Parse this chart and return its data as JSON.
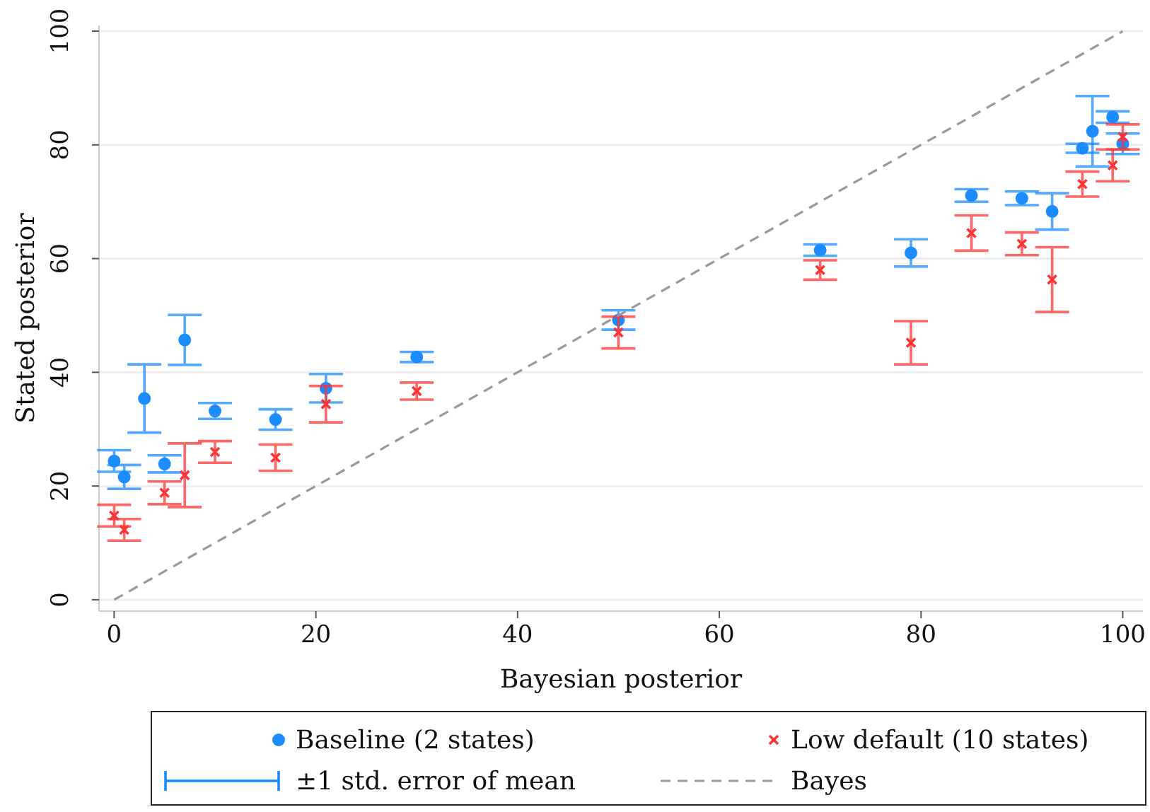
{
  "chart_data": {
    "type": "scatter",
    "xlabel": "Bayesian posterior",
    "ylabel": "Stated posterior",
    "xlim": [
      -1.5,
      102
    ],
    "ylim": [
      -2,
      101
    ],
    "xticks": [
      0,
      20,
      40,
      60,
      80,
      100
    ],
    "yticks": [
      0,
      20,
      40,
      60,
      80,
      100
    ],
    "grid": "y",
    "legend": "bottom",
    "annotations": [
      "±1 std. error of mean"
    ],
    "series": [
      {
        "name": "Baseline (2 states)",
        "marker": "circle",
        "color": "#1a8cff",
        "x": [
          0,
          1,
          3,
          5,
          7,
          10,
          16,
          21,
          30,
          50,
          70,
          79,
          85,
          90,
          93,
          96,
          97,
          99,
          100
        ],
        "values": [
          24.4,
          21.6,
          35.4,
          23.9,
          45.7,
          33.2,
          31.7,
          37.2,
          42.7,
          49.2,
          61.5,
          61,
          71.1,
          70.6,
          68.3,
          79.4,
          82.4,
          84.9,
          80.2
        ],
        "errors": [
          1.9,
          2.1,
          6,
          1.5,
          4.4,
          1.4,
          1.8,
          2.5,
          0.9,
          1.7,
          1,
          2.4,
          1.1,
          1.2,
          3.2,
          0.8,
          6.2,
          1,
          1.8
        ]
      },
      {
        "name": "Low default (10 states)",
        "marker": "cross",
        "color": "#ff3333",
        "x": [
          0,
          1,
          5,
          7,
          10,
          16,
          21,
          30,
          50,
          70,
          79,
          85,
          90,
          93,
          96,
          99,
          100
        ],
        "values": [
          14.8,
          12.3,
          18.8,
          21.9,
          26,
          25,
          34.4,
          36.7,
          47,
          58,
          45.2,
          64.5,
          62.6,
          56.3,
          73.1,
          76.4,
          81.4
        ],
        "errors": [
          1.9,
          1.9,
          2,
          5.6,
          1.9,
          2.3,
          3.2,
          1.5,
          2.8,
          1.7,
          3.8,
          3.1,
          2,
          5.7,
          2.2,
          2.8,
          2.2
        ]
      },
      {
        "name": "Bayes",
        "type": "line",
        "marker": "none",
        "line_style": "dashed",
        "color": "#999999",
        "x": [
          0,
          100
        ],
        "values": [
          0,
          100
        ]
      }
    ]
  }
}
